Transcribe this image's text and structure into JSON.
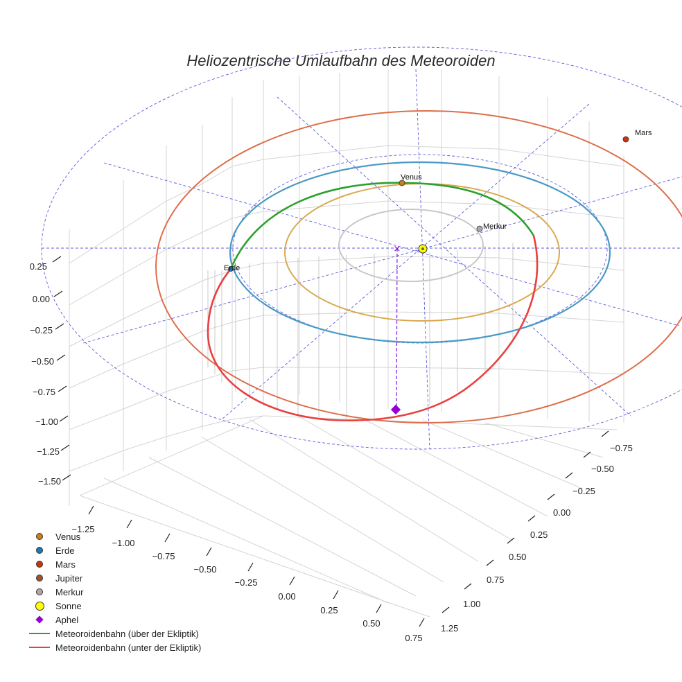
{
  "chart_data": {
    "type": "scatter",
    "subtype": "3d-orbit",
    "title": "Heliozentrische Umlaufbahn des Meteoroiden",
    "z_ticks": [
      "0.25",
      "0.00",
      "−0.25",
      "−0.50",
      "−0.75",
      "−1.00",
      "−1.25",
      "−1.50"
    ],
    "x_ticks": [
      "−1.25",
      "−1.00",
      "−0.75",
      "−0.50",
      "−0.25",
      "0.00",
      "0.25",
      "0.50",
      "0.75"
    ],
    "y_ticks": [
      "−0.75",
      "−0.50",
      "−0.25",
      "0.00",
      "0.25",
      "0.50",
      "0.75",
      "1.00",
      "1.25"
    ],
    "planets": [
      {
        "name": "Merkur",
        "label": "Merkur",
        "orbit_radius_au": 0.39,
        "color": "#aaaaaa",
        "orbit_color": "#c8c8c8"
      },
      {
        "name": "Venus",
        "label": "Venus",
        "orbit_radius_au": 0.72,
        "color": "#c87f1e",
        "orbit_color": "#d9a84e"
      },
      {
        "name": "Erde",
        "label": "Erde",
        "orbit_radius_au": 1.0,
        "color": "#1f77b4",
        "orbit_color": "#4a9ac4"
      },
      {
        "name": "Mars",
        "label": "Mars",
        "orbit_radius_au": 1.52,
        "color": "#cc3311",
        "orbit_color": "#dd6e4a"
      }
    ],
    "meteoroid": {
      "aphelion_au": 1.04,
      "perihelion_au": 0.72,
      "z_min_au": -1.05,
      "color_above": "#2ca02c",
      "color_below": "#e8403f"
    },
    "legend": [
      {
        "label": "Venus",
        "marker": "dot",
        "color": "#c87f1e"
      },
      {
        "label": "Erde",
        "marker": "dot",
        "color": "#1f77b4"
      },
      {
        "label": "Mars",
        "marker": "dot",
        "color": "#cc3311"
      },
      {
        "label": "Jupiter",
        "marker": "dot",
        "color": "#a0522d"
      },
      {
        "label": "Merkur",
        "marker": "dot",
        "color": "#b0a8a0"
      },
      {
        "label": "Sonne",
        "marker": "bigdot",
        "color": "#ffff00"
      },
      {
        "label": "Aphel",
        "marker": "diamond",
        "color": "#9400d3"
      },
      {
        "label": "Meteoroidenbahn (über der Ekliptik)",
        "marker": "line",
        "color": "#2ca02c"
      },
      {
        "label": "Meteoroidenbahn (unter der Ekliptik)",
        "marker": "line",
        "color": "#e8403f"
      }
    ]
  }
}
